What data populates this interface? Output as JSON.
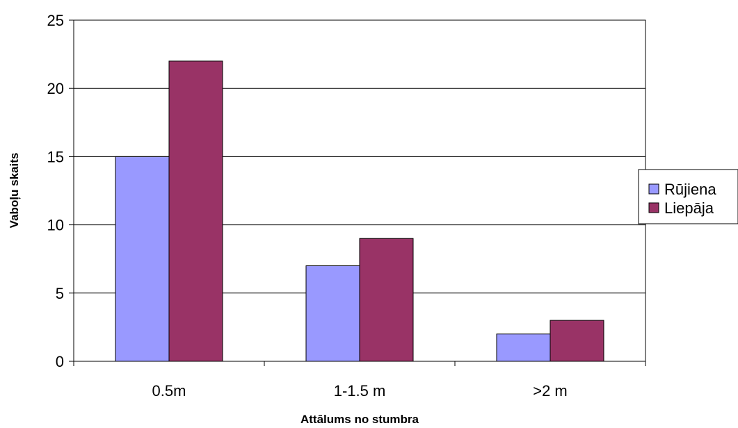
{
  "chart_data": {
    "type": "bar",
    "title": "",
    "xlabel": "Attālums no stumbra",
    "ylabel": "Vaboļu skaits",
    "categories": [
      "0.5m",
      "1-1.5 m",
      ">2 m"
    ],
    "series": [
      {
        "name": "Rūjiena",
        "values": [
          15,
          7,
          2
        ],
        "color": "#9999ff"
      },
      {
        "name": "Liepāja",
        "values": [
          22,
          9,
          3
        ],
        "color": "#993366"
      }
    ],
    "ylim": [
      0,
      25
    ],
    "yticks": [
      0,
      5,
      10,
      15,
      20,
      25
    ],
    "grid": true,
    "legend_position": "right"
  }
}
